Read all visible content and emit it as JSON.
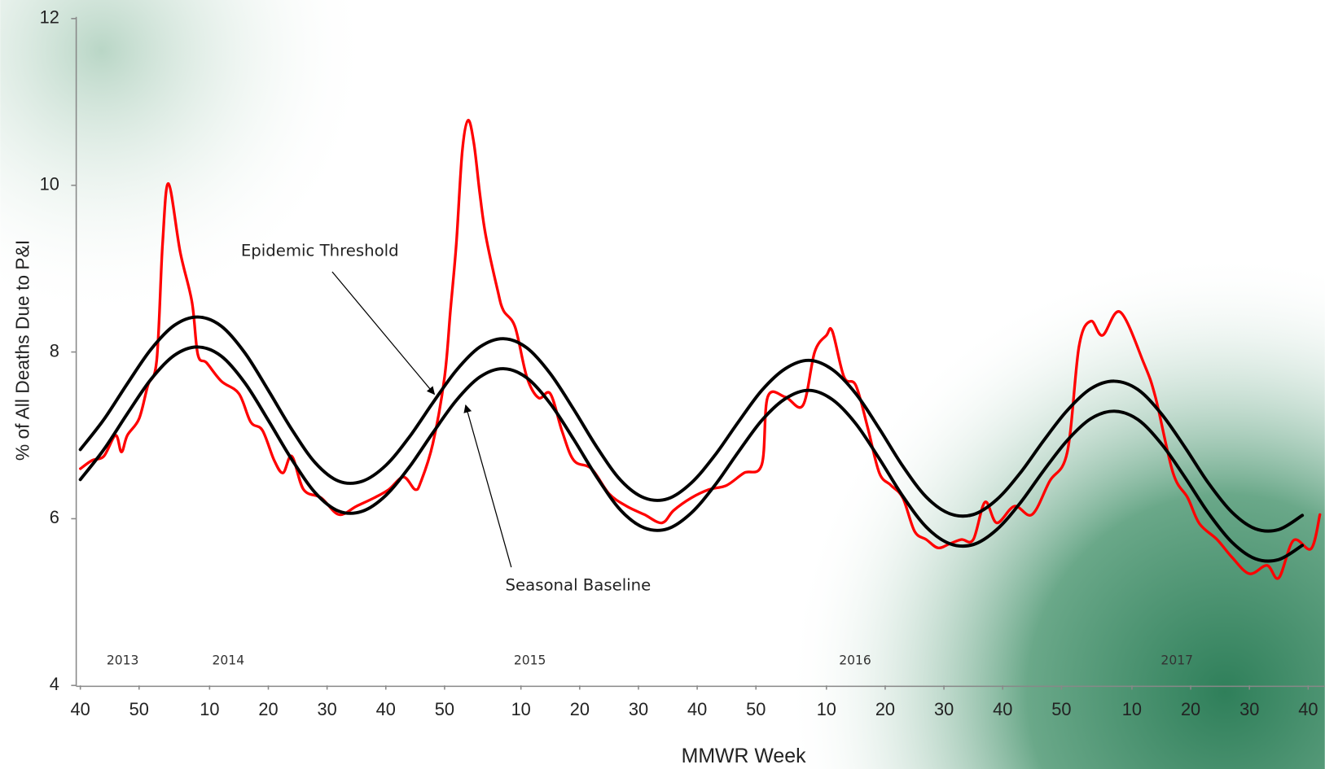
{
  "chart_data": {
    "type": "line",
    "y_label": "% of All Deaths Due to P&I",
    "x_label": "MMWR Week",
    "ylim": [
      4,
      12
    ],
    "yticks": [
      4,
      6,
      8,
      10,
      12
    ],
    "xlim": [
      -0.7,
      211.4
    ],
    "xticks": [
      {
        "value": 0,
        "label": "40"
      },
      {
        "value": 10,
        "label": "50"
      },
      {
        "value": 22,
        "label": "10"
      },
      {
        "value": 32,
        "label": "20"
      },
      {
        "value": 42,
        "label": "30"
      },
      {
        "value": 52,
        "label": "40"
      },
      {
        "value": 62,
        "label": "50"
      },
      {
        "value": 75,
        "label": "10"
      },
      {
        "value": 85,
        "label": "20"
      },
      {
        "value": 95,
        "label": "30"
      },
      {
        "value": 105,
        "label": "40"
      },
      {
        "value": 115,
        "label": "50"
      },
      {
        "value": 127,
        "label": "10"
      },
      {
        "value": 137,
        "label": "20"
      },
      {
        "value": 147,
        "label": "30"
      },
      {
        "value": 157,
        "label": "40"
      },
      {
        "value": 167,
        "label": "50"
      },
      {
        "value": 179,
        "label": "10"
      },
      {
        "value": 189,
        "label": "20"
      },
      {
        "value": 199,
        "label": "30"
      },
      {
        "value": 209,
        "label": "40"
      }
    ],
    "year_labels": [
      "2013",
      "2014",
      "2015",
      "2016",
      "2017"
    ],
    "series": [
      {
        "color": "#ff0000",
        "x": [
          0,
          2,
          4,
          6,
          7,
          8,
          10,
          11.5,
          13,
          14,
          15,
          17,
          19,
          20,
          21.5,
          24,
          27,
          29,
          31,
          33,
          34.5,
          36,
          38,
          41,
          44,
          47,
          50,
          52.5,
          55,
          57,
          58,
          60,
          62,
          63,
          64,
          65,
          66,
          67,
          68,
          69,
          71,
          72,
          74,
          76,
          78,
          80,
          82,
          84,
          87,
          90,
          93,
          96,
          99,
          101,
          104,
          107,
          110,
          113,
          116,
          117,
          120,
          123,
          125,
          127,
          128,
          130,
          132,
          134,
          136,
          138,
          140,
          142,
          144,
          146,
          148,
          150,
          152,
          154,
          156,
          159,
          162,
          165,
          168,
          170,
          172,
          174,
          177,
          181,
          183,
          186,
          188.5,
          190.5,
          193.5,
          196,
          199,
          202,
          204,
          206.5,
          209.5,
          211
        ],
        "values": [
          6.6,
          6.7,
          6.75,
          7.0,
          6.8,
          7.0,
          7.2,
          7.6,
          7.9,
          9.3,
          10.02,
          9.2,
          8.6,
          7.97,
          7.87,
          7.65,
          7.5,
          7.16,
          7.06,
          6.7,
          6.55,
          6.75,
          6.35,
          6.25,
          6.05,
          6.15,
          6.25,
          6.35,
          6.5,
          6.35,
          6.45,
          6.9,
          7.7,
          8.5,
          9.3,
          10.4,
          10.78,
          10.5,
          9.9,
          9.4,
          8.75,
          8.5,
          8.3,
          7.7,
          7.45,
          7.5,
          7.05,
          6.7,
          6.6,
          6.3,
          6.15,
          6.05,
          5.95,
          6.1,
          6.25,
          6.35,
          6.4,
          6.55,
          6.65,
          7.46,
          7.46,
          7.36,
          8.0,
          8.2,
          8.25,
          7.7,
          7.6,
          7.1,
          6.55,
          6.4,
          6.25,
          5.85,
          5.75,
          5.65,
          5.7,
          5.75,
          5.75,
          6.2,
          5.95,
          6.15,
          6.05,
          6.45,
          6.8,
          8.07,
          8.37,
          8.2,
          8.48,
          7.87,
          7.46,
          6.55,
          6.25,
          5.94,
          5.75,
          5.54,
          5.34,
          5.44,
          5.29,
          5.74,
          5.64,
          6.05
        ]
      },
      {
        "name": "Epidemic Threshold",
        "color": "#000000",
        "x": [
          0,
          4,
          8,
          12,
          16,
          20,
          24,
          28,
          32,
          36,
          40,
          44,
          48,
          52,
          56,
          60,
          64,
          68,
          72,
          76,
          80,
          84,
          88,
          92,
          96,
          100,
          104,
          108,
          112,
          116,
          120,
          124,
          128,
          132,
          136,
          140,
          144,
          148,
          152,
          156,
          160,
          164,
          168,
          172,
          176,
          180,
          184,
          188,
          192,
          196,
          200,
          204,
          208
        ],
        "values": [
          6.83,
          7.19,
          7.62,
          8.03,
          8.32,
          8.42,
          8.31,
          7.99,
          7.54,
          7.07,
          6.67,
          6.45,
          6.45,
          6.64,
          6.98,
          7.39,
          7.78,
          8.06,
          8.16,
          8.05,
          7.74,
          7.31,
          6.85,
          6.46,
          6.25,
          6.24,
          6.43,
          6.76,
          7.16,
          7.54,
          7.8,
          7.9,
          7.79,
          7.5,
          7.08,
          6.63,
          6.26,
          6.06,
          6.05,
          6.23,
          6.55,
          6.94,
          7.3,
          7.56,
          7.65,
          7.55,
          7.26,
          6.86,
          6.43,
          6.08,
          5.88,
          5.87,
          6.04
        ]
      },
      {
        "name": "Seasonal Baseline",
        "color": "#000000",
        "x": [
          0,
          4,
          8,
          12,
          16,
          20,
          24,
          28,
          32,
          36,
          40,
          44,
          48,
          52,
          56,
          60,
          64,
          68,
          72,
          76,
          80,
          84,
          88,
          92,
          96,
          100,
          104,
          108,
          112,
          116,
          120,
          124,
          128,
          132,
          136,
          140,
          144,
          148,
          152,
          156,
          160,
          164,
          168,
          172,
          176,
          180,
          184,
          188,
          192,
          196,
          200,
          204,
          208
        ],
        "values": [
          6.47,
          6.83,
          7.26,
          7.67,
          7.96,
          8.06,
          7.95,
          7.63,
          7.18,
          6.71,
          6.31,
          6.09,
          6.09,
          6.28,
          6.62,
          7.03,
          7.42,
          7.7,
          7.8,
          7.69,
          7.38,
          6.95,
          6.49,
          6.1,
          5.89,
          5.88,
          6.07,
          6.4,
          6.8,
          7.18,
          7.44,
          7.54,
          7.43,
          7.14,
          6.72,
          6.27,
          5.9,
          5.7,
          5.69,
          5.87,
          6.19,
          6.58,
          6.94,
          7.2,
          7.29,
          7.19,
          6.9,
          6.5,
          6.07,
          5.72,
          5.52,
          5.51,
          5.68
        ]
      }
    ]
  }
}
